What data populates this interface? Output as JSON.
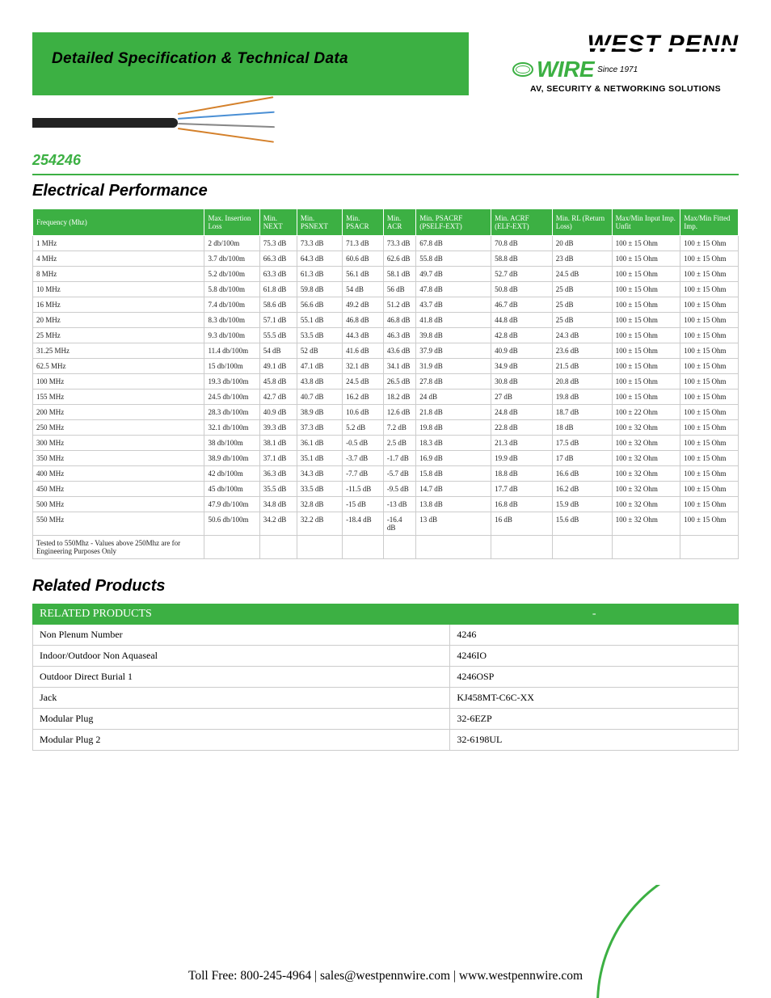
{
  "header": {
    "title": "Detailed Specification & Technical Data",
    "logo_main": "WEST PENN",
    "logo_wire": "WIRE",
    "logo_since": "Since 1971",
    "logo_tagline": "AV, SECURITY & NETWORKING SOLUTIONS",
    "part_number": "254246"
  },
  "colors": {
    "brand_green": "#3cb043",
    "text": "#000000",
    "border_gray": "#cccccc"
  },
  "section_electrical": {
    "title": "Electrical Performance",
    "columns": [
      "Frequency (Mhz)",
      "Max. Insertion Loss",
      "Min. NEXT",
      "Min. PSNEXT",
      "Min. PSACR",
      "Min. ACR",
      "Min. PSACRF (PSELF-EXT)",
      "Min. ACRF (ELF-EXT)",
      "Min. RL (Return Loss)",
      "Max/Min Input Imp. Unfit",
      "Max/Min Fitted Imp."
    ],
    "rows": [
      [
        "1 MHz",
        "2 db/100m",
        "75.3 dB",
        "73.3 dB",
        "71.3 dB",
        "73.3 dB",
        "67.8 dB",
        "70.8 dB",
        "20 dB",
        "100 ± 15  Ohm",
        "100 ± 15 Ohm"
      ],
      [
        "4 MHz",
        "3.7 db/100m",
        "66.3 dB",
        "64.3 dB",
        "60.6 dB",
        "62.6 dB",
        "55.8 dB",
        "58.8 dB",
        "23 dB",
        "100 ± 15  Ohm",
        "100 ± 15 Ohm"
      ],
      [
        "8 MHz",
        "5.2 db/100m",
        "63.3 dB",
        "61.3 dB",
        "56.1 dB",
        "58.1 dB",
        "49.7 dB",
        "52.7 dB",
        "24.5 dB",
        "100 ± 15  Ohm",
        "100 ± 15 Ohm"
      ],
      [
        "10 MHz",
        "5.8 db/100m",
        "61.8 dB",
        "59.8 dB",
        "54 dB",
        "56 dB",
        "47.8 dB",
        "50.8 dB",
        "25 dB",
        "100 ± 15  Ohm",
        "100 ± 15 Ohm"
      ],
      [
        "16 MHz",
        "7.4 db/100m",
        "58.6 dB",
        "56.6 dB",
        "49.2 dB",
        "51.2 dB",
        "43.7 dB",
        "46.7 dB",
        "25 dB",
        "100 ± 15  Ohm",
        "100 ± 15 Ohm"
      ],
      [
        "20 MHz",
        "8.3 db/100m",
        "57.1 dB",
        "55.1 dB",
        "46.8 dB",
        "46.8 dB",
        "41.8 dB",
        "44.8 dB",
        "25 dB",
        "100 ± 15  Ohm",
        "100 ± 15 Ohm"
      ],
      [
        "25 MHz",
        "9.3 db/100m",
        "55.5 dB",
        "53.5 dB",
        "44.3 dB",
        "46.3 dB",
        "39.8 dB",
        "42.8 dB",
        "24.3 dB",
        "100 ± 15  Ohm",
        "100 ± 15 Ohm"
      ],
      [
        "31.25 MHz",
        "11.4 db/100m",
        "54 dB",
        "52 dB",
        "41.6 dB",
        "43.6 dB",
        "37.9 dB",
        "40.9 dB",
        "23.6 dB",
        "100 ± 15  Ohm",
        "100 ± 15 Ohm"
      ],
      [
        "62.5 MHz",
        "15 db/100m",
        "49.1 dB",
        "47.1 dB",
        "32.1 dB",
        "34.1 dB",
        "31.9 dB",
        "34.9 dB",
        "21.5 dB",
        "100 ± 15  Ohm",
        "100 ± 15 Ohm"
      ],
      [
        "100 MHz",
        "19.3 db/100m",
        "45.8 dB",
        "43.8 dB",
        "24.5 dB",
        "26.5 dB",
        "27.8 dB",
        "30.8 dB",
        "20.8 dB",
        "100 ± 15  Ohm",
        "100 ± 15 Ohm"
      ],
      [
        "155 MHz",
        "24.5 db/100m",
        "42.7 dB",
        "40.7 dB",
        "16.2 dB",
        "18.2 dB",
        "24 dB",
        "27 dB",
        "19.8 dB",
        "100 ± 15  Ohm",
        "100 ± 15 Ohm"
      ],
      [
        "200 MHz",
        "28.3 db/100m",
        "40.9 dB",
        "38.9 dB",
        "10.6 dB",
        "12.6 dB",
        "21.8 dB",
        "24.8 dB",
        "18.7 dB",
        "100 ± 22  Ohm",
        "100 ± 15 Ohm"
      ],
      [
        "250 MHz",
        "32.1 db/100m",
        "39.3 dB",
        "37.3 dB",
        "5.2 dB",
        "7.2 dB",
        "19.8 dB",
        "22.8 dB",
        "18 dB",
        "100 ± 32  Ohm",
        "100 ± 15 Ohm"
      ],
      [
        "300 MHz",
        "38 db/100m",
        "38.1 dB",
        "36.1 dB",
        "-0.5 dB",
        "2.5 dB",
        "18.3 dB",
        "21.3 dB",
        "17.5 dB",
        "100 ± 32  Ohm",
        "100 ± 15 Ohm"
      ],
      [
        "350 MHz",
        "38.9 db/100m",
        "37.1 dB",
        "35.1 dB",
        "-3.7 dB",
        "-1.7 dB",
        "16.9 dB",
        "19.9 dB",
        "17 dB",
        "100 ± 32  Ohm",
        "100 ± 15 Ohm"
      ],
      [
        "400 MHz",
        "42 db/100m",
        "36.3 dB",
        "34.3 dB",
        "-7.7 dB",
        "-5.7 dB",
        "15.8 dB",
        "18.8 dB",
        "16.6 dB",
        "100 ± 32  Ohm",
        "100 ± 15 Ohm"
      ],
      [
        "450 MHz",
        "45 db/100m",
        "35.5 dB",
        "33.5 dB",
        "-11.5 dB",
        "-9.5 dB",
        "14.7 dB",
        "17.7 dB",
        "16.2 dB",
        "100 ± 32  Ohm",
        "100 ± 15 Ohm"
      ],
      [
        "500 MHz",
        "47.9 db/100m",
        "34.8 dB",
        "32.8 dB",
        "-15 dB",
        "-13 dB",
        "13.8 dB",
        "16.8 dB",
        "15.9 dB",
        "100 ± 32  Ohm",
        "100 ± 15 Ohm"
      ],
      [
        "550 MHz",
        "50.6 db/100m",
        "34.2 dB",
        "32.2 dB",
        "-18.4 dB",
        "-16.4 dB",
        "13 dB",
        "16 dB",
        "15.6 dB",
        "100 ± 32  Ohm",
        "100 ± 15 Ohm"
      ],
      [
        "Tested to 550Mhz - Values above 250Mhz are for Engineering Purposes Only",
        "",
        "",
        "",
        "",
        "",
        "",
        "",
        "",
        "",
        ""
      ]
    ]
  },
  "section_related": {
    "title": "Related Products",
    "header_left": "RELATED PRODUCTS",
    "header_right": "-",
    "rows": [
      [
        "Non Plenum Number",
        "4246"
      ],
      [
        "Indoor/Outdoor Non Aquaseal",
        "4246IO"
      ],
      [
        "Outdoor Direct Burial 1",
        "4246OSP"
      ],
      [
        "Jack",
        "KJ458MT-C6C-XX"
      ],
      [
        "Modular Plug",
        "32-6EZP"
      ],
      [
        "Modular Plug 2",
        "32-6198UL"
      ]
    ]
  },
  "footer": {
    "text": "Toll Free: 800-245-4964 | sales@westpennwire.com | www.westpennwire.com"
  }
}
